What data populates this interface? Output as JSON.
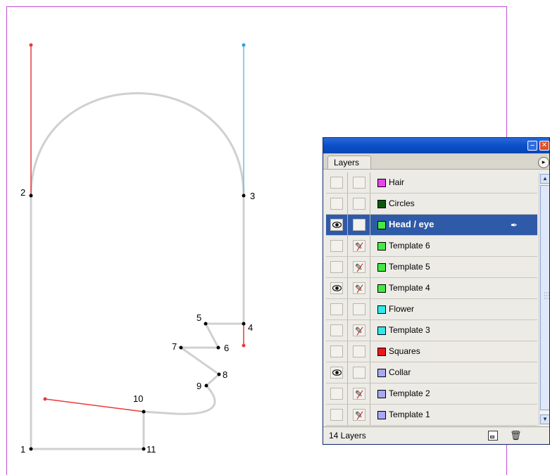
{
  "canvas": {
    "point_labels": [
      "1",
      "2",
      "3",
      "4",
      "5",
      "6",
      "7",
      "8",
      "9",
      "10",
      "11"
    ]
  },
  "panel": {
    "tab_label": "Layers",
    "layer_count": "14 Layers",
    "layers": [
      {
        "name": "Hair",
        "color": "#e845e8",
        "visible": false,
        "template": false,
        "selected": false
      },
      {
        "name": "Circles",
        "color": "#0b5a0b",
        "visible": false,
        "template": false,
        "selected": false
      },
      {
        "name": "Head / eye",
        "color": "#45e845",
        "visible": true,
        "template": false,
        "selected": true
      },
      {
        "name": "Template 6",
        "color": "#45e845",
        "visible": false,
        "template": true,
        "selected": false
      },
      {
        "name": "Template 5",
        "color": "#45e845",
        "visible": false,
        "template": true,
        "selected": false
      },
      {
        "name": "Template 4",
        "color": "#45e845",
        "visible": true,
        "template": true,
        "selected": false
      },
      {
        "name": "Flower",
        "color": "#33e8e8",
        "visible": false,
        "template": false,
        "selected": false
      },
      {
        "name": "Template 3",
        "color": "#33e8e8",
        "visible": false,
        "template": true,
        "selected": false
      },
      {
        "name": "Squares",
        "color": "#e81a1a",
        "visible": false,
        "template": false,
        "selected": false
      },
      {
        "name": "Collar",
        "color": "#a8a8f4",
        "visible": true,
        "template": false,
        "selected": false
      },
      {
        "name": "Template 2",
        "color": "#a8a8f4",
        "visible": false,
        "template": true,
        "selected": false
      },
      {
        "name": "Template 1",
        "color": "#a8a8f4",
        "visible": false,
        "template": true,
        "selected": false
      }
    ]
  }
}
